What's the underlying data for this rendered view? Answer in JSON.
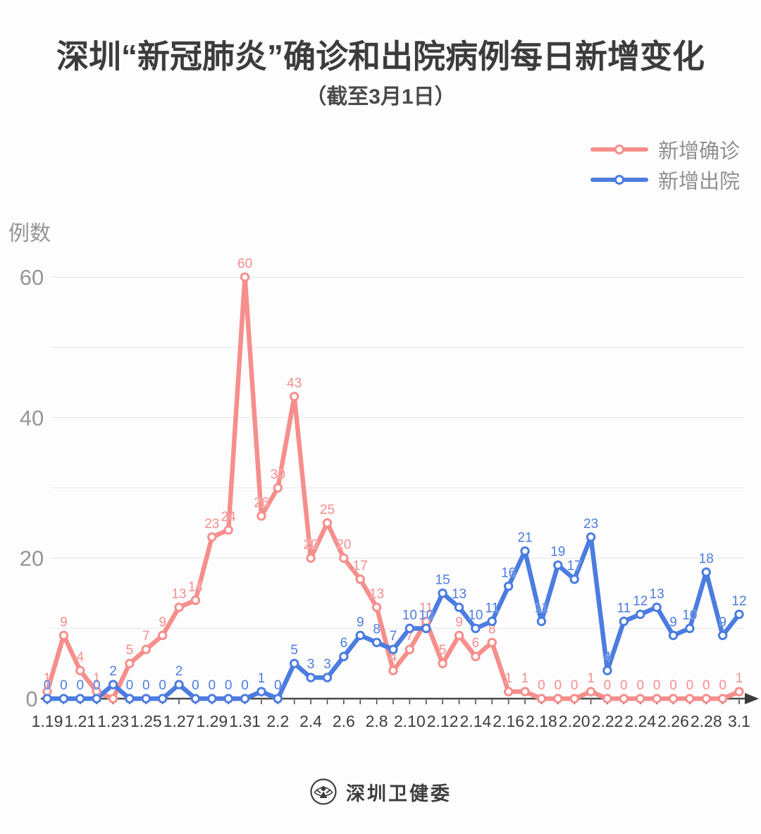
{
  "title": "深圳“新冠肺炎”确诊和出院病例每日新增变化",
  "subtitle": "（截至3月1日）",
  "footer_brand": "深圳卫健委",
  "colors": {
    "confirmed": "#F68E8C",
    "discharged": "#4C7CE0",
    "grid": "#EAEAEA",
    "axis": "#4A4A4A",
    "axis_arrow": "#3A3A3A",
    "y_label": "#959595",
    "x_label": "#3D3D3D",
    "title_text": "#3C3C3C",
    "legend_text": "#8F8F8F",
    "background": "#FDFDFD"
  },
  "chart_data": {
    "type": "line",
    "title": "深圳“新冠肺炎”确诊和出院病例每日新增变化",
    "subtitle": "（截至3月1日）",
    "xlabel": "",
    "ylabel": "例数",
    "ylim": [
      0,
      60
    ],
    "yticks_labeled": [
      0,
      20,
      40,
      60
    ],
    "gridlines_y": [
      10,
      20,
      30,
      40,
      50,
      60
    ],
    "grid": true,
    "x_labeled_every": 2,
    "legend_position": "top-right",
    "data_labels": true,
    "marker": "open-circle",
    "x": [
      "1.19",
      "1.20",
      "1.21",
      "1.22",
      "1.23",
      "1.24",
      "1.25",
      "1.26",
      "1.27",
      "1.28",
      "1.29",
      "1.30",
      "1.31",
      "2.1",
      "2.2",
      "2.3",
      "2.4",
      "2.5",
      "2.6",
      "2.7",
      "2.8",
      "2.9",
      "2.10",
      "2.11",
      "2.12",
      "2.13",
      "2.14",
      "2.15",
      "2.16",
      "2.17",
      "2.18",
      "2.19",
      "2.20",
      "2.21",
      "2.22",
      "2.23",
      "2.24",
      "2.25",
      "2.26",
      "2.27",
      "2.28",
      "2.29",
      "3.1"
    ],
    "series": [
      {
        "name": "新增确诊",
        "color": "#F68E8C",
        "values": [
          1,
          9,
          4,
          1,
          0,
          5,
          7,
          9,
          13,
          14,
          23,
          24,
          60,
          26,
          30,
          43,
          20,
          25,
          20,
          17,
          13,
          4,
          7,
          11,
          5,
          9,
          6,
          8,
          1,
          1,
          0,
          0,
          0,
          1,
          0,
          0,
          0,
          0,
          0,
          0,
          0,
          0,
          1
        ]
      },
      {
        "name": "新增出院",
        "color": "#4C7CE0",
        "values": [
          0,
          0,
          0,
          0,
          2,
          0,
          0,
          0,
          2,
          0,
          0,
          0,
          0,
          1,
          0,
          5,
          3,
          3,
          6,
          9,
          8,
          7,
          10,
          10,
          15,
          13,
          10,
          11,
          16,
          21,
          11,
          19,
          17,
          23,
          4,
          11,
          12,
          13,
          9,
          10,
          18,
          9,
          12
        ]
      }
    ]
  }
}
